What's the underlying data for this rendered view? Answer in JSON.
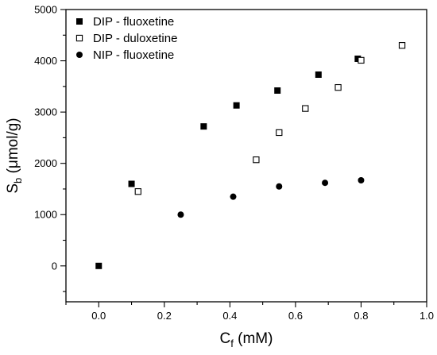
{
  "chart_data": {
    "type": "scatter",
    "title": "",
    "xlabel": {
      "main": "C",
      "sub": "f",
      "rest": " (mM)"
    },
    "ylabel": {
      "main": "S",
      "sub": "b",
      "rest": " (μmol/g)"
    },
    "xlim": [
      -0.1,
      1.0
    ],
    "ylim": [
      -700,
      5000
    ],
    "xticks": [
      0.0,
      0.2,
      0.4,
      0.6,
      0.8,
      1.0
    ],
    "xtick_labels": [
      "0.0",
      "0.2",
      "0.4",
      "0.6",
      "0.8",
      "1.0"
    ],
    "yticks": [
      0,
      1000,
      2000,
      3000,
      4000,
      5000
    ],
    "ytick_labels": [
      "0",
      "1000",
      "2000",
      "3000",
      "4000",
      "5000"
    ],
    "grid": false,
    "legend_position": "top-left",
    "series": [
      {
        "name": "DIP - fluoxetine",
        "marker": "filled-square",
        "color": "#000000",
        "points": [
          [
            0.0,
            0
          ],
          [
            0.1,
            1600
          ],
          [
            0.32,
            2720
          ],
          [
            0.42,
            3130
          ],
          [
            0.545,
            3420
          ],
          [
            0.67,
            3730
          ],
          [
            0.79,
            4040
          ]
        ]
      },
      {
        "name": "DIP - duloxetine",
        "marker": "open-square",
        "color": "#000000",
        "points": [
          [
            0.12,
            1450
          ],
          [
            0.48,
            2070
          ],
          [
            0.55,
            2600
          ],
          [
            0.63,
            3070
          ],
          [
            0.73,
            3480
          ],
          [
            0.8,
            4010
          ],
          [
            0.925,
            4300
          ]
        ]
      },
      {
        "name": "NIP - fluoxetine",
        "marker": "filled-circle",
        "color": "#000000",
        "points": [
          [
            0.25,
            1000
          ],
          [
            0.41,
            1350
          ],
          [
            0.55,
            1550
          ],
          [
            0.69,
            1620
          ],
          [
            0.8,
            1670
          ]
        ]
      }
    ]
  }
}
